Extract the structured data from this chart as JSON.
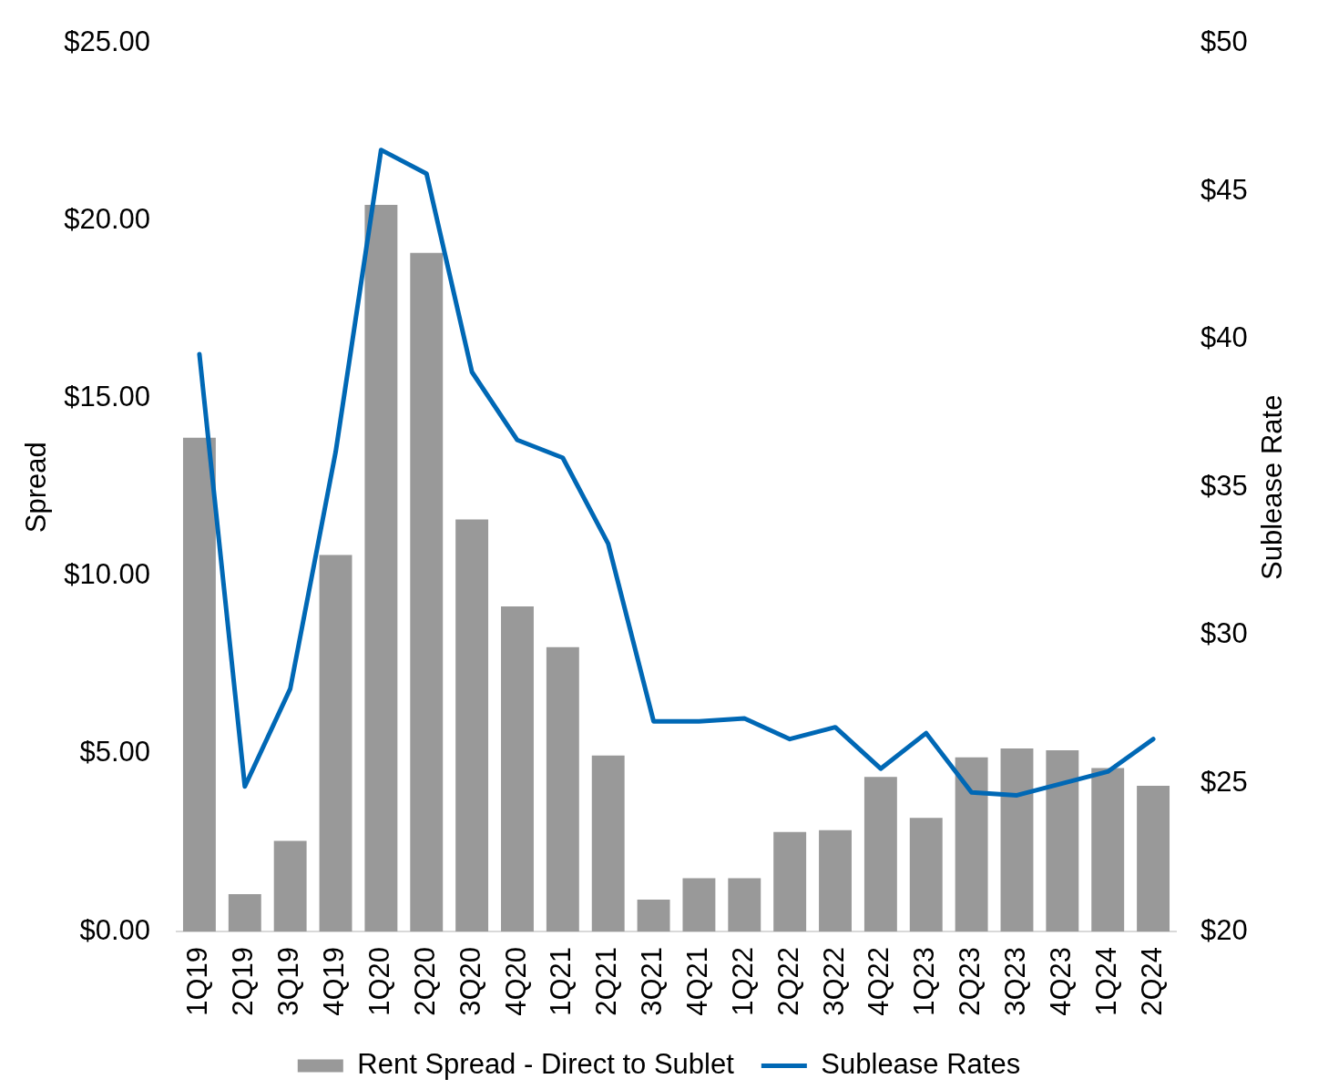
{
  "chart_data": {
    "type": "bar",
    "categories": [
      "1Q19",
      "2Q19",
      "3Q19",
      "4Q19",
      "1Q20",
      "2Q20",
      "3Q20",
      "4Q20",
      "1Q21",
      "2Q21",
      "3Q21",
      "4Q21",
      "1Q22",
      "2Q22",
      "3Q22",
      "4Q22",
      "1Q23",
      "2Q23",
      "3Q23",
      "4Q23",
      "1Q24",
      "2Q24"
    ],
    "series": [
      {
        "name": "Rent Spread - Direct to Sublet",
        "color": "#999999",
        "values": [
          13.9,
          1.05,
          2.55,
          10.6,
          20.45,
          19.1,
          11.6,
          9.15,
          8.0,
          4.95,
          0.9,
          1.5,
          1.5,
          2.8,
          2.85,
          4.35,
          3.2,
          4.9,
          5.15,
          5.1,
          4.6,
          4.1
        ]
      },
      {
        "name": "Sublease Rates",
        "type": "line",
        "axis": "y2",
        "color": "#0068b5",
        "values": [
          39.5,
          24.9,
          28.2,
          36.2,
          46.4,
          45.6,
          38.9,
          36.6,
          36.0,
          33.1,
          27.1,
          27.1,
          27.2,
          26.5,
          26.9,
          25.5,
          26.7,
          24.7,
          24.6,
          25.0,
          25.4,
          26.5
        ]
      }
    ],
    "ylabel": "Spread",
    "y2label": "Sublease Rate",
    "ylim": [
      0,
      25
    ],
    "yticks": [
      {
        "value": 0,
        "label": "$0.00"
      },
      {
        "value": 5,
        "label": "$5.00"
      },
      {
        "value": 10,
        "label": "$10.00"
      },
      {
        "value": 15,
        "label": "$15.00"
      },
      {
        "value": 20,
        "label": "$20.00"
      },
      {
        "value": 25,
        "label": "$25.00"
      }
    ],
    "y2lim": [
      20,
      50
    ],
    "y2ticks": [
      {
        "value": 20,
        "label": "$20"
      },
      {
        "value": 25,
        "label": "$25"
      },
      {
        "value": 30,
        "label": "$30"
      },
      {
        "value": 35,
        "label": "$35"
      },
      {
        "value": 40,
        "label": "$40"
      },
      {
        "value": 45,
        "label": "$45"
      },
      {
        "value": 50,
        "label": "$50"
      }
    ],
    "legend": "bottom",
    "grid": false,
    "marker": "none",
    "line_style": "solid"
  }
}
